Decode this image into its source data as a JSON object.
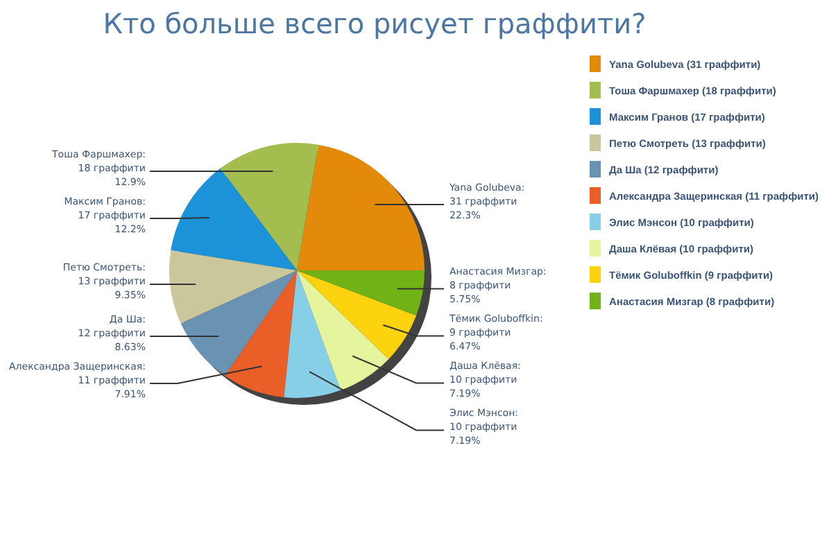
{
  "chart_data": {
    "type": "pie",
    "title": "Кто больше всего рисует граффити?",
    "categories": [
      "Yana Golubeva (31 граффити)",
      "Тоша Фаршмахер (18 граффити)",
      "Максим Гранов (17 граффити)",
      "Петю Смотреть (13 граффити)",
      "Да Ша (12 граффити)",
      "Александра Защеринская (11 граффити)",
      "Элис Мэнсон (10 граффити)",
      "Даша Клёвая (10 граффити)",
      "Тёмик Goluboffkin (9 граффити)",
      "Анастасия Мизгар (8 граффити)"
    ],
    "values": [
      31,
      18,
      17,
      13,
      12,
      11,
      10,
      10,
      9,
      8
    ],
    "value_labels": [
      "Yana Golubeva:\n31 граффити\n22.3%",
      "Тоша Фаршмахер:\n18 граффити\n12.9%",
      "Максим Гранов:\n17 граффити\n12.2%",
      "Петю Смотреть:\n13 граффити\n9.35%",
      "Да Ша:\n12 граффити\n8.63%",
      "Александра Защеринская:\n11 граффити\n7.91%",
      "Элис Мэнсон:\n10 граффити\n7.19%",
      "Даша Клёвая:\n10 граффити\n7.19%",
      "Тёмик Goluboffkin:\n9 граффити\n6.47%",
      "Анастасия Мизгар:\n8 граффити\n5.75%"
    ],
    "colors": [
      "#e38a0a",
      "#a3bd4f",
      "#1c93d9",
      "#cbc79c",
      "#6a93b3",
      "#ea5f28",
      "#86cfe6",
      "#e4f59e",
      "#fdd20e",
      "#71b216"
    ],
    "legend": "right"
  }
}
